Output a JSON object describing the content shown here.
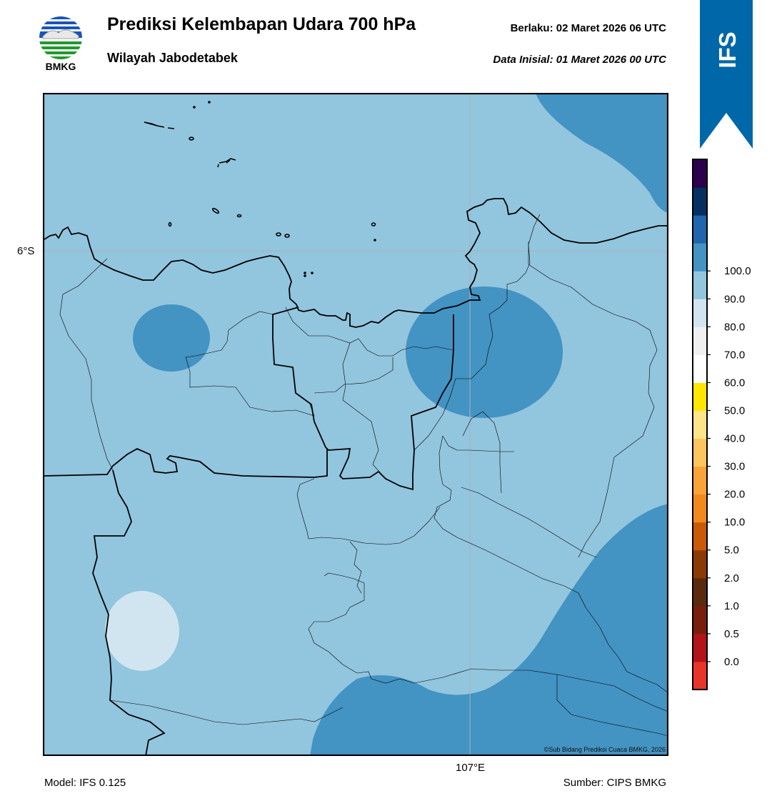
{
  "header": {
    "title": "Prediksi Kelembapan Udara 700 hPa",
    "subtitle": "Wilayah Jabodetabek",
    "valid_time": "Berlaku:  02 Maret 2026 06 UTC",
    "init_time": "Data Inisial:  01 Maret 2026 00 UTC"
  },
  "logo": {
    "text": "BMKG",
    "icon": "bmkg-logo-icon"
  },
  "ribbon": {
    "text": "IFS",
    "color": "#0068a8"
  },
  "map": {
    "lat_label": "6°S",
    "lon_label": "107°E",
    "copyright": "©Sub Bidang Prediksi Cuaca BMKG, 2026",
    "background_color": "#92c5de",
    "zone_colors": {
      "light": "#d1e5f0",
      "medium": "#4393c3"
    }
  },
  "footer": {
    "model": "Model: IFS 0.125",
    "source": "Sumber: CIPS BMKG"
  },
  "colorbar": {
    "ticks": [
      "0.0",
      "0.5",
      "1.0",
      "2.0",
      "5.0",
      "10.0",
      "20.0",
      "30.0",
      "40.0",
      "50.0",
      "60.0",
      "70.0",
      "80.0",
      "90.0",
      "100.0"
    ],
    "colors_bottom_to_top": [
      "#e8352a",
      "#b2141a",
      "#7a1e0c",
      "#5a2a0e",
      "#8c3a05",
      "#c85a08",
      "#f08a1e",
      "#f9a33a",
      "#fdc460",
      "#ffe48a",
      "#ffe600",
      "#ffffff",
      "#f0f0f0",
      "#d1e5f0",
      "#92c5de",
      "#4393c3",
      "#2166ac",
      "#053061",
      "#2d004b"
    ]
  }
}
